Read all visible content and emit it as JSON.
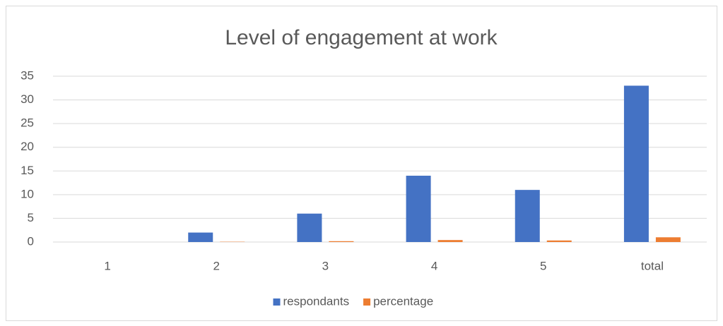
{
  "chart_data": {
    "type": "bar",
    "title": "Level of engagement at work",
    "categories": [
      "1",
      "2",
      "3",
      "4",
      "5",
      "total"
    ],
    "series": [
      {
        "name": "respondants",
        "color": "#4472c4",
        "values": [
          0,
          2,
          6,
          14,
          11,
          33
        ]
      },
      {
        "name": "percentage",
        "color": "#ed7d31",
        "values": [
          0,
          0.06,
          0.18,
          0.42,
          0.33,
          1
        ]
      }
    ],
    "ylim": [
      0,
      35
    ],
    "yticks": [
      0,
      5,
      10,
      15,
      20,
      25,
      30,
      35
    ],
    "grid": true,
    "legend": "bottom"
  }
}
